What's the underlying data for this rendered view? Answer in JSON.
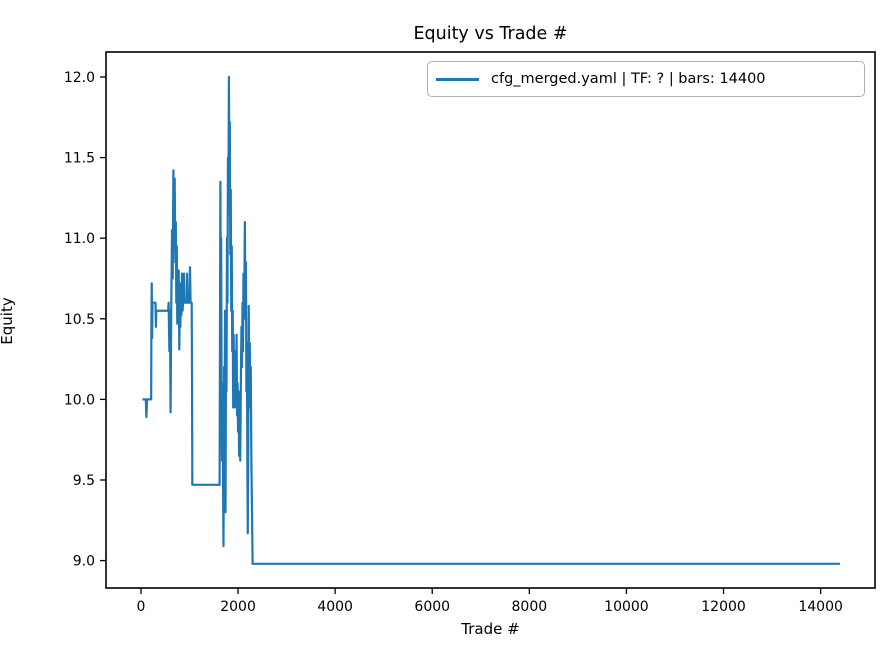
{
  "figure": {
    "background": "#ffffff"
  },
  "chart_data": {
    "type": "line",
    "title": "Equity vs Trade #",
    "xlabel": "Trade #",
    "ylabel": "Equity",
    "grid": false,
    "xlim": [
      -720,
      15120
    ],
    "ylim": [
      8.83,
      12.155
    ],
    "x_ticks": {
      "values": [
        0,
        2000,
        4000,
        6000,
        8000,
        10000,
        12000,
        14000
      ],
      "labels": [
        "0",
        "2000",
        "4000",
        "6000",
        "8000",
        "10000",
        "12000",
        "14000"
      ]
    },
    "y_ticks": {
      "values": [
        9.0,
        9.5,
        10.0,
        10.5,
        11.0,
        11.5,
        12.0
      ],
      "labels": [
        "9.0",
        "9.5",
        "10.0",
        "10.5",
        "11.0",
        "11.5",
        "12.0"
      ]
    },
    "legend": {
      "position": "upper right",
      "entries": [
        {
          "label": "cfg_merged.yaml | TF: ? | bars: 14400",
          "color": "#1f77b4"
        }
      ]
    },
    "axis_color": "#000000",
    "series": [
      {
        "name": "cfg_merged.yaml | TF: ? | bars: 14400",
        "color": "#1f77b4",
        "points": [
          [
            30,
            10.0
          ],
          [
            100,
            10.0
          ],
          [
            112,
            9.89
          ],
          [
            125,
            10.0
          ],
          [
            210,
            10.0
          ],
          [
            215,
            10.45
          ],
          [
            222,
            10.72
          ],
          [
            230,
            10.38
          ],
          [
            238,
            10.6
          ],
          [
            300,
            10.6
          ],
          [
            308,
            10.45
          ],
          [
            316,
            10.55
          ],
          [
            560,
            10.55
          ],
          [
            570,
            10.6
          ],
          [
            585,
            10.3
          ],
          [
            597,
            10.55
          ],
          [
            610,
            9.92
          ],
          [
            625,
            10.6
          ],
          [
            640,
            11.05
          ],
          [
            655,
            10.75
          ],
          [
            668,
            11.42
          ],
          [
            680,
            10.93
          ],
          [
            695,
            11.37
          ],
          [
            708,
            10.85
          ],
          [
            718,
            11.1
          ],
          [
            728,
            10.6
          ],
          [
            738,
            10.95
          ],
          [
            748,
            10.47
          ],
          [
            758,
            10.74
          ],
          [
            768,
            10.52
          ],
          [
            778,
            10.8
          ],
          [
            790,
            10.31
          ],
          [
            800,
            10.62
          ],
          [
            812,
            10.45
          ],
          [
            822,
            10.72
          ],
          [
            832,
            10.52
          ],
          [
            845,
            10.78
          ],
          [
            858,
            10.55
          ],
          [
            870,
            10.62
          ],
          [
            885,
            10.78
          ],
          [
            895,
            10.6
          ],
          [
            940,
            10.6
          ],
          [
            950,
            10.78
          ],
          [
            962,
            10.6
          ],
          [
            1000,
            10.6
          ],
          [
            1010,
            10.82
          ],
          [
            1022,
            10.6
          ],
          [
            1045,
            10.6
          ],
          [
            1052,
            10.15
          ],
          [
            1058,
            9.47
          ],
          [
            1620,
            9.47
          ],
          [
            1628,
            10.4
          ],
          [
            1636,
            11.35
          ],
          [
            1645,
            10.55
          ],
          [
            1652,
            11.0
          ],
          [
            1660,
            10.15
          ],
          [
            1670,
            9.62
          ],
          [
            1680,
            10.1
          ],
          [
            1692,
            9.45
          ],
          [
            1700,
            9.09
          ],
          [
            1712,
            10.2
          ],
          [
            1722,
            9.75
          ],
          [
            1732,
            10.55
          ],
          [
            1742,
            9.3
          ],
          [
            1752,
            10.3
          ],
          [
            1762,
            10.05
          ],
          [
            1772,
            11.0
          ],
          [
            1782,
            10.6
          ],
          [
            1792,
            11.5
          ],
          [
            1800,
            11.15
          ],
          [
            1812,
            12.0
          ],
          [
            1822,
            11.3
          ],
          [
            1830,
            11.72
          ],
          [
            1840,
            10.9
          ],
          [
            1850,
            11.3
          ],
          [
            1860,
            10.55
          ],
          [
            1870,
            10.95
          ],
          [
            1880,
            10.3
          ],
          [
            1890,
            10.55
          ],
          [
            1900,
            9.95
          ],
          [
            1910,
            10.4
          ],
          [
            1920,
            10.0
          ],
          [
            1930,
            10.3
          ],
          [
            1940,
            9.95
          ],
          [
            1950,
            10.25
          ],
          [
            1960,
            10.05
          ],
          [
            1970,
            10.4
          ],
          [
            1980,
            9.9
          ],
          [
            1990,
            10.1
          ],
          [
            2000,
            9.8
          ],
          [
            2010,
            10.05
          ],
          [
            2022,
            9.65
          ],
          [
            2032,
            10.0
          ],
          [
            2045,
            9.62
          ],
          [
            2058,
            10.12
          ],
          [
            2070,
            10.45
          ],
          [
            2080,
            10.2
          ],
          [
            2092,
            10.6
          ],
          [
            2102,
            10.3
          ],
          [
            2112,
            10.78
          ],
          [
            2125,
            10.5
          ],
          [
            2140,
            11.1
          ],
          [
            2152,
            10.55
          ],
          [
            2162,
            10.85
          ],
          [
            2172,
            10.05
          ],
          [
            2182,
            10.35
          ],
          [
            2192,
            9.6
          ],
          [
            2200,
            9.17
          ],
          [
            2210,
            9.65
          ],
          [
            2220,
            10.58
          ],
          [
            2232,
            10.0
          ],
          [
            2242,
            10.35
          ],
          [
            2252,
            9.95
          ],
          [
            2262,
            10.2
          ],
          [
            2275,
            9.6
          ],
          [
            2288,
            9.3
          ],
          [
            2300,
            8.98
          ],
          [
            14400,
            8.98
          ]
        ]
      }
    ]
  }
}
